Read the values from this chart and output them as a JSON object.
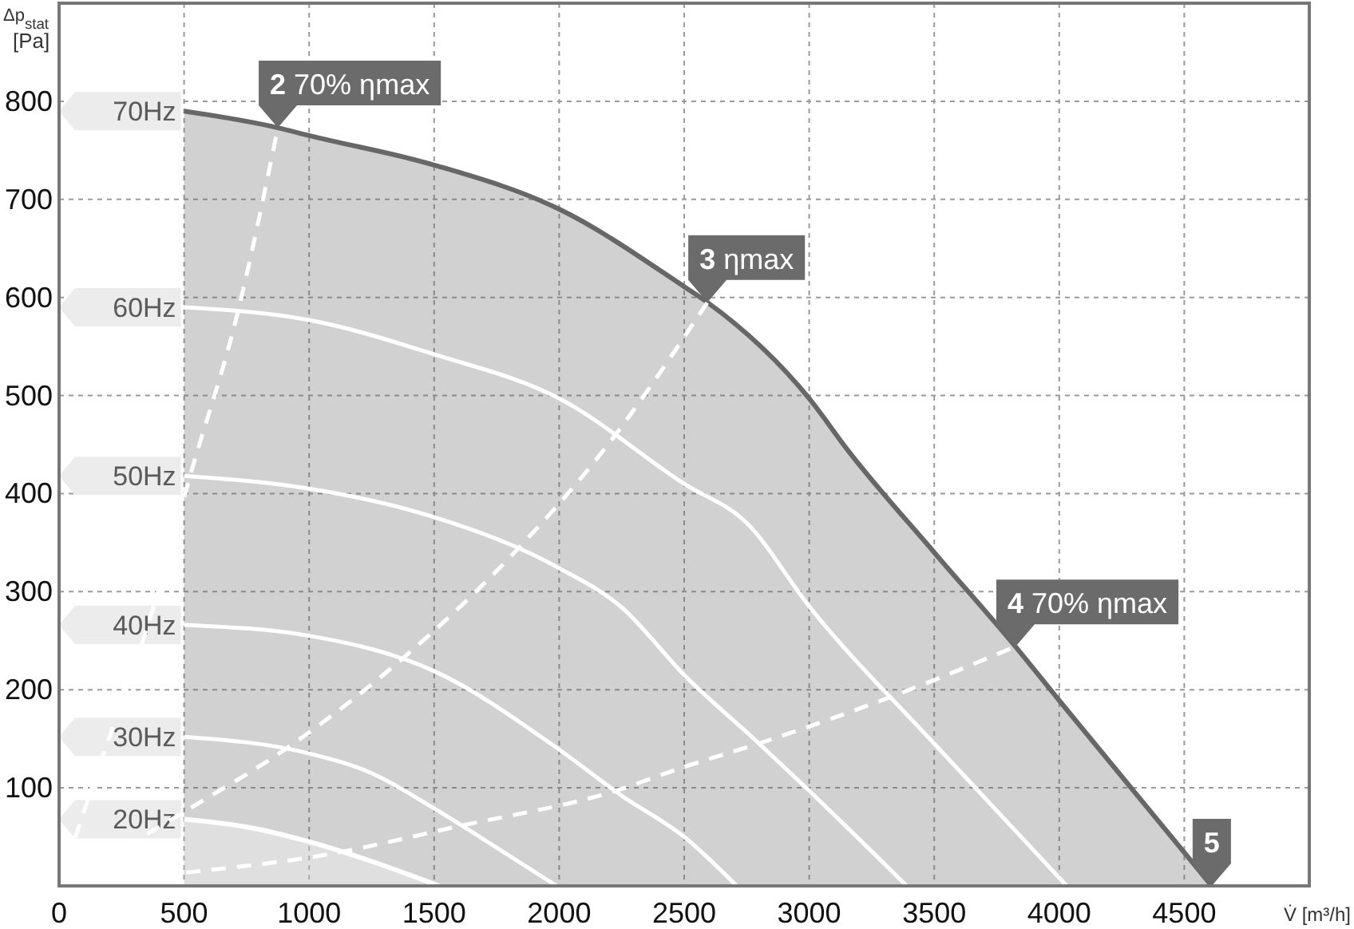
{
  "chart_data": {
    "type": "line",
    "xlabel": "V̇ [m³/h]",
    "ylabel": "Δp$_{stat}$ [Pa]",
    "xlim": [
      0,
      5000
    ],
    "ylim": [
      0,
      900
    ],
    "xticks": [
      0,
      500,
      1000,
      1500,
      2000,
      2500,
      3000,
      3500,
      4000,
      4500
    ],
    "yticks": [
      {
        "value": 0,
        "label": null
      },
      100,
      200,
      300,
      400,
      500,
      600,
      700,
      800,
      {
        "value": 900,
        "label": null
      }
    ],
    "grid": true,
    "legend": false,
    "series": [
      {
        "name": "70Hz",
        "type": "area",
        "color": "#676767",
        "x": [
          500,
          875,
          1000,
          1500,
          2000,
          2500,
          2593,
          3000,
          3155,
          3500,
          3825,
          4000,
          4610
        ],
        "values": [
          790,
          773,
          765,
          735,
          690,
          611,
          595,
          497,
          444,
          340,
          244,
          189,
          0
        ]
      },
      {
        "name": "20Hz",
        "type": "area",
        "color": "#ffffff",
        "x": [
          500,
          750,
          1000,
          1250,
          1520
        ],
        "values": [
          68,
          60,
          45,
          25,
          0
        ]
      },
      {
        "name": "30Hz",
        "color": "#ffffff",
        "x": [
          500,
          1000,
          1250,
          1500,
          1750,
          1990
        ],
        "values": [
          152,
          135,
          115,
          79,
          39,
          0
        ]
      },
      {
        "name": "40Hz",
        "color": "#ffffff",
        "x": [
          500,
          1000,
          1500,
          2000,
          2250,
          2500,
          2710
        ],
        "values": [
          266,
          255,
          219,
          139,
          92,
          50,
          0
        ]
      },
      {
        "name": "50Hz",
        "color": "#ffffff",
        "x": [
          500,
          1000,
          1500,
          2000,
          2250,
          2500,
          2800,
          3000,
          3390
        ],
        "values": [
          418,
          405,
          376,
          324,
          284,
          215,
          145,
          97,
          0
        ]
      },
      {
        "name": "60Hz",
        "color": "#ffffff",
        "x": [
          500,
          1000,
          1500,
          2000,
          2500,
          2750,
          3000,
          3500,
          4030
        ],
        "values": [
          590,
          577,
          542,
          497,
          410,
          370,
          285,
          145,
          0
        ]
      },
      {
        "color": "#ffffff",
        "line_style": "dashed",
        "x": [
          0,
          134,
          409,
          524,
          709,
          875
        ],
        "values": [
          0,
          102,
          311,
          418,
          579,
          773
        ]
      },
      {
        "color": "#ffffff",
        "line_style": "dashed",
        "x": [
          0,
          490,
          920,
          1370,
          1810,
          2180,
          2593
        ],
        "values": [
          0,
          74,
          142,
          231,
          337,
          445,
          595
        ]
      },
      {
        "color": "#ffffff",
        "line_style": "dashed",
        "x": [
          0,
          490,
          1050,
          1600,
          2200,
          2520,
          2820,
          3350,
          3825
        ],
        "values": [
          0,
          13,
          31,
          61,
          95,
          123,
          147,
          195,
          244
        ]
      }
    ],
    "annotations": [
      {
        "text": "2 70% ηmax",
        "x": 875,
        "y": 773
      },
      {
        "text": "3 ηmax",
        "x": 2593,
        "y": 595
      },
      {
        "text": "4 70% ηmax",
        "x": 3825,
        "y": 244
      },
      {
        "text": "5",
        "x": 4610,
        "y": 0
      }
    ]
  }
}
